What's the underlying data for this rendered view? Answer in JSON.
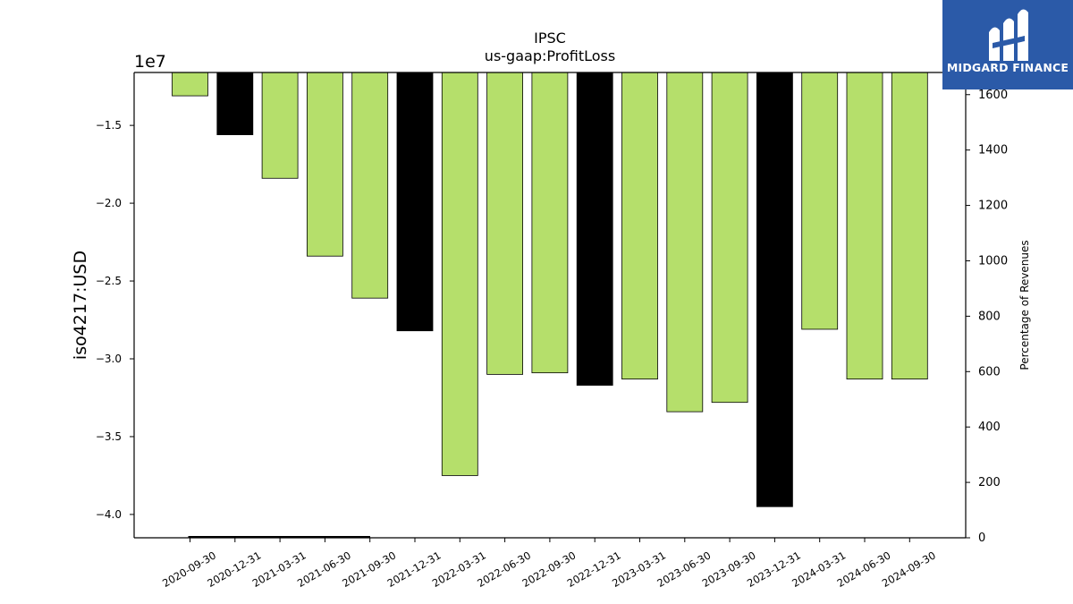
{
  "title": "IPSC",
  "subtitle": "us-gaap:ProfitLoss",
  "brand": {
    "name": "MIDGARD FINANCE",
    "color": "#2b5aa8"
  },
  "chart_data": {
    "type": "bar",
    "categories": [
      "2020-09-30",
      "2020-12-31",
      "2021-03-31",
      "2021-06-30",
      "2021-09-30",
      "2021-12-31",
      "2022-03-31",
      "2022-06-30",
      "2022-09-30",
      "2022-12-31",
      "2023-03-31",
      "2023-06-30",
      "2023-09-30",
      "2023-12-31",
      "2024-03-31",
      "2024-06-30",
      "2024-09-30"
    ],
    "values": [
      -13100000,
      -15600000,
      -18400000,
      -23400000,
      -26100000,
      -28200000,
      -37500000,
      -31000000,
      -30900000,
      -31700000,
      -31300000,
      -33400000,
      -32800000,
      -39500000,
      -28100000,
      -31300000,
      -31300000
    ],
    "bar_colors": [
      "#b5df6b",
      "#000000",
      "#b5df6b",
      "#b5df6b",
      "#b5df6b",
      "#000000",
      "#b5df6b",
      "#b5df6b",
      "#b5df6b",
      "#000000",
      "#b5df6b",
      "#b5df6b",
      "#b5df6b",
      "#000000",
      "#b5df6b",
      "#b5df6b",
      "#b5df6b"
    ],
    "ylabel": "iso4217:USD",
    "y_offset_label": "1e7",
    "ylim": [
      -41500000,
      -11600000
    ],
    "yticks": [
      -40000000,
      -35000000,
      -30000000,
      -25000000,
      -20000000,
      -15000000
    ],
    "ytick_labels": [
      "−4.0",
      "−3.5",
      "−3.0",
      "−2.5",
      "−2.0",
      "−1.5"
    ],
    "y2label": "Percentage of Revenues",
    "y2lim": [
      0,
      1680
    ],
    "y2ticks": [
      0,
      200,
      400,
      600,
      800,
      1000,
      1200,
      1400,
      1600
    ],
    "y2_line": {
      "from_index": 0,
      "to_index": 5,
      "value": 0
    },
    "grid": false,
    "legend": "none"
  }
}
